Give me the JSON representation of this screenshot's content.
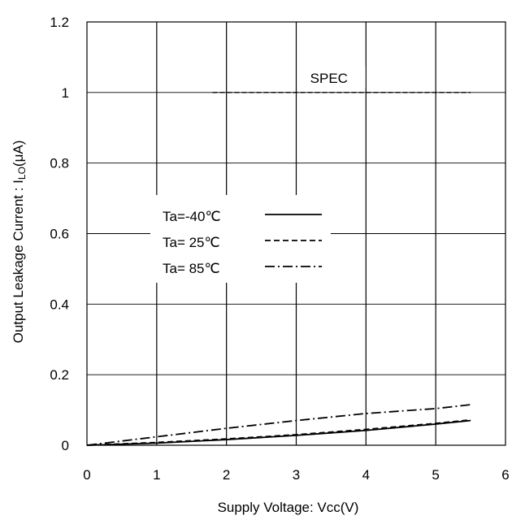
{
  "chart_data": {
    "type": "line",
    "title": "",
    "xlabel": "Supply Voltage: Vcc(V)",
    "ylabel_main": "Output Leakage Current : I",
    "ylabel_sub": "LO",
    "ylabel_unit": "(μA)",
    "xlim": [
      0,
      6
    ],
    "ylim": [
      0,
      1.2
    ],
    "x_ticks": [
      "0",
      "1",
      "2",
      "3",
      "4",
      "5",
      "6"
    ],
    "y_ticks": [
      "0",
      "0.2",
      "0.4",
      "0.6",
      "0.8",
      "1",
      "1.2"
    ],
    "grid": true,
    "spec": {
      "label": "SPEC",
      "y": 1.0,
      "x_start": 1.8,
      "x_end": 5.5
    },
    "legend_position": "center-left",
    "series": [
      {
        "name": "Ta=-40℃",
        "style": "solid",
        "x": [
          0,
          1,
          2,
          3,
          4,
          5,
          5.5
        ],
        "y": [
          0,
          0.006,
          0.016,
          0.028,
          0.042,
          0.06,
          0.07
        ]
      },
      {
        "name": "Ta= 25℃",
        "style": "dashed",
        "x": [
          0,
          1,
          2,
          3,
          4,
          5,
          5.5
        ],
        "y": [
          0,
          0.008,
          0.018,
          0.03,
          0.045,
          0.062,
          0.072
        ]
      },
      {
        "name": "Ta= 85℃",
        "style": "dashdot",
        "x": [
          0,
          1,
          2,
          3,
          4,
          5,
          5.5
        ],
        "y": [
          0,
          0.024,
          0.048,
          0.07,
          0.09,
          0.104,
          0.115
        ]
      }
    ]
  }
}
